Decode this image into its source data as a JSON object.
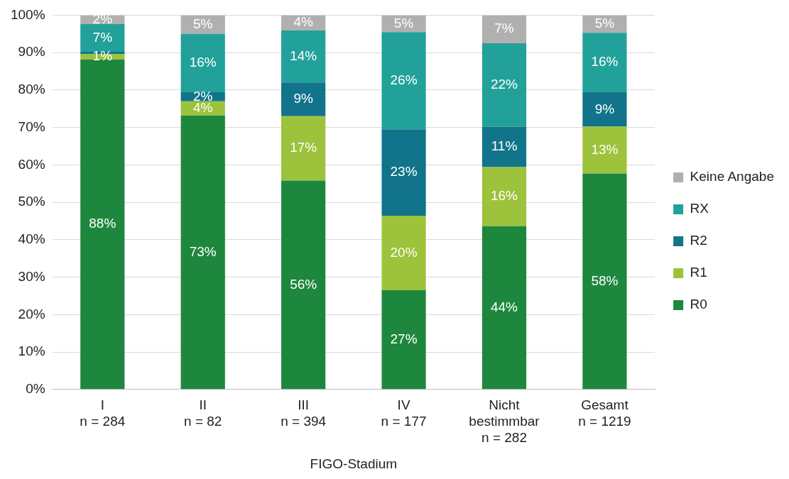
{
  "chart_data": {
    "type": "bar",
    "stacked": true,
    "xlabel": "FIGO-Stadium",
    "categories": [
      "I\nn = 284",
      "II\nn = 82",
      "III\nn = 394",
      "IV\nn = 177",
      "Nicht\nbestimmbar\nn = 282",
      "Gesamt\nn = 1219"
    ],
    "series": [
      {
        "name": "R0",
        "color": "#1e873e",
        "values": [
          88.2,
          73.2,
          55.8,
          26.5,
          43.6,
          57.7
        ],
        "value_labels": [
          "88%",
          "73%",
          "56%",
          "27%",
          "44%",
          "58%"
        ]
      },
      {
        "name": "R1",
        "color": "#9dc23c",
        "values": [
          1.4,
          3.8,
          17.2,
          19.9,
          15.8,
          12.5
        ],
        "value_labels": [
          "1%",
          "4%",
          "17%",
          "20%",
          "16%",
          "13%"
        ]
      },
      {
        "name": "R2",
        "color": "#11748a",
        "values": [
          0.6,
          2.4,
          9.0,
          23.1,
          10.8,
          9.2
        ],
        "value_labels": [
          null,
          "2%",
          "9%",
          "23%",
          "11%",
          "9%"
        ]
      },
      {
        "name": "RX",
        "color": "#22a19a",
        "values": [
          7.4,
          15.6,
          13.9,
          26.0,
          22.3,
          15.9
        ],
        "value_labels": [
          "7%",
          "16%",
          "14%",
          "26%",
          "22%",
          "16%"
        ]
      },
      {
        "name": "Keine Angabe",
        "color": "#b0b0b0",
        "values": [
          2.4,
          5.0,
          4.1,
          4.5,
          7.5,
          4.7
        ],
        "value_labels": [
          "2%",
          "5%",
          "4%",
          "5%",
          "7%",
          "5%"
        ]
      }
    ],
    "ylim": [
      0,
      100
    ],
    "yticks": [
      {
        "value": 0,
        "label": "0%"
      },
      {
        "value": 10,
        "label": "10%"
      },
      {
        "value": 20,
        "label": "20%"
      },
      {
        "value": 30,
        "label": "30%"
      },
      {
        "value": 40,
        "label": "40%"
      },
      {
        "value": 50,
        "label": "50%"
      },
      {
        "value": 60,
        "label": "60%"
      },
      {
        "value": 70,
        "label": "70%"
      },
      {
        "value": 80,
        "label": "80%"
      },
      {
        "value": 90,
        "label": "90%"
      },
      {
        "value": 100,
        "label": "100%"
      }
    ],
    "grid": "y",
    "legend": "right"
  }
}
